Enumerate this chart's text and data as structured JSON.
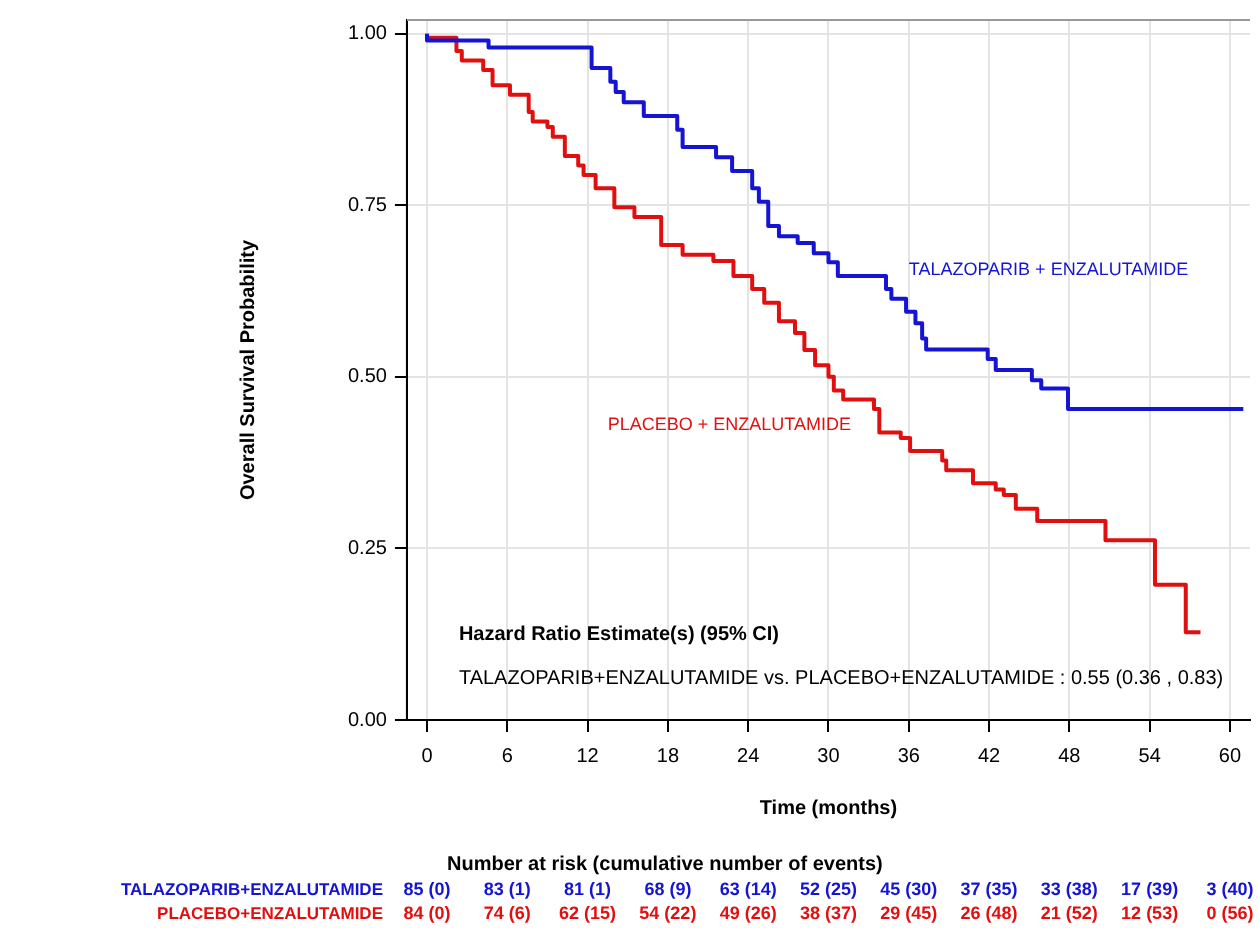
{
  "chart_data": {
    "type": "step",
    "xlabel": "Time (months)",
    "ylabel": "Overall Survival Probability",
    "xlim": [
      -1.5,
      61.5
    ],
    "xticks": [
      0,
      6,
      12,
      18,
      24,
      30,
      36,
      42,
      48,
      54,
      60
    ],
    "ylim": [
      0,
      1.02
    ],
    "yticks": [
      {
        "value": 0,
        "label": "0.00"
      },
      {
        "value": 0.25,
        "label": "0.25"
      },
      {
        "value": 0.5,
        "label": "0.50"
      },
      {
        "value": 0.75,
        "label": "0.75"
      },
      {
        "value": 1,
        "label": "1.00"
      }
    ],
    "grid": true,
    "legend": false,
    "line_style": "solid",
    "marker": "none",
    "series": [
      {
        "name": "TALAZOPARIB + ENZALUTAMIDE",
        "color": "#1414d2",
        "x": [
          0,
          4.6,
          12.3,
          13.7,
          14.1,
          14.7,
          16.2,
          18.7,
          19.1,
          21.6,
          22.8,
          24.3,
          24.8,
          25.5,
          26.3,
          27.7,
          28.9,
          30.0,
          30.7,
          34.3,
          34.7,
          35.8,
          36.5,
          37.0,
          37.3,
          41.9,
          42.5,
          45.2,
          45.9,
          47.9,
          54.4,
          61
        ],
        "values": [
          1,
          0.99,
          0.98,
          0.95,
          0.93,
          0.915,
          0.9,
          0.88,
          0.86,
          0.835,
          0.82,
          0.8,
          0.775,
          0.755,
          0.72,
          0.705,
          0.695,
          0.68,
          0.667,
          0.647,
          0.628,
          0.614,
          0.595,
          0.578,
          0.556,
          0.54,
          0.526,
          0.51,
          0.495,
          0.483,
          0.453,
          0.453
        ]
      },
      {
        "name": "PLACEBO + ENZALUTAMIDE",
        "color": "#e01010",
        "x": [
          0,
          2.2,
          2.6,
          4.2,
          4.9,
          6.2,
          7.6,
          7.9,
          9.0,
          9.4,
          10.3,
          11.3,
          11.7,
          12.6,
          14.0,
          15.5,
          17.5,
          19.1,
          21.4,
          22.9,
          24.3,
          25.2,
          26.3,
          27.5,
          28.2,
          29.0,
          30.0,
          30.4,
          31.1,
          33.4,
          33.8,
          35.4,
          36.1,
          38.5,
          38.8,
          40.8,
          42.5,
          43.1,
          44.0,
          45.6,
          50.7,
          54.4,
          56.7,
          57.4,
          57.8
        ],
        "values": [
          1,
          0.994,
          0.975,
          0.961,
          0.947,
          0.925,
          0.911,
          0.886,
          0.872,
          0.864,
          0.85,
          0.822,
          0.808,
          0.794,
          0.775,
          0.747,
          0.733,
          0.692,
          0.678,
          0.669,
          0.647,
          0.628,
          0.608,
          0.581,
          0.564,
          0.539,
          0.517,
          0.5,
          0.48,
          0.467,
          0.453,
          0.419,
          0.411,
          0.392,
          0.378,
          0.364,
          0.345,
          0.336,
          0.328,
          0.308,
          0.29,
          0.262,
          0.197,
          0.128,
          0.128
        ]
      }
    ],
    "annotations": [
      "Hazard Ratio Estimate(s) (95% CI)",
      "TALAZOPARIB+ENZALUTAMIDE vs. PLACEBO+ENZALUTAMIDE : 0.55 (0.36 , 0.83)",
      "Number at risk (cumulative number of events)",
      "TALAZOPARIB+ENZALUTAMIDE",
      "85 (0)",
      "83 (1)",
      "81 (1)",
      "68 (9)",
      "63 (14)",
      "52 (25)",
      "45 (30)",
      "37 (35)",
      "33 (38)",
      "17 (39)",
      "3 (40)",
      "PLACEBO+ENZALUTAMIDE",
      "84 (0)",
      "74 (6)",
      "62 (15)",
      "54 (22)",
      "49 (26)",
      "38 (37)",
      "29 (45)",
      "26 (48)",
      "21 (52)",
      "12 (53)",
      "0 (56)"
    ]
  }
}
